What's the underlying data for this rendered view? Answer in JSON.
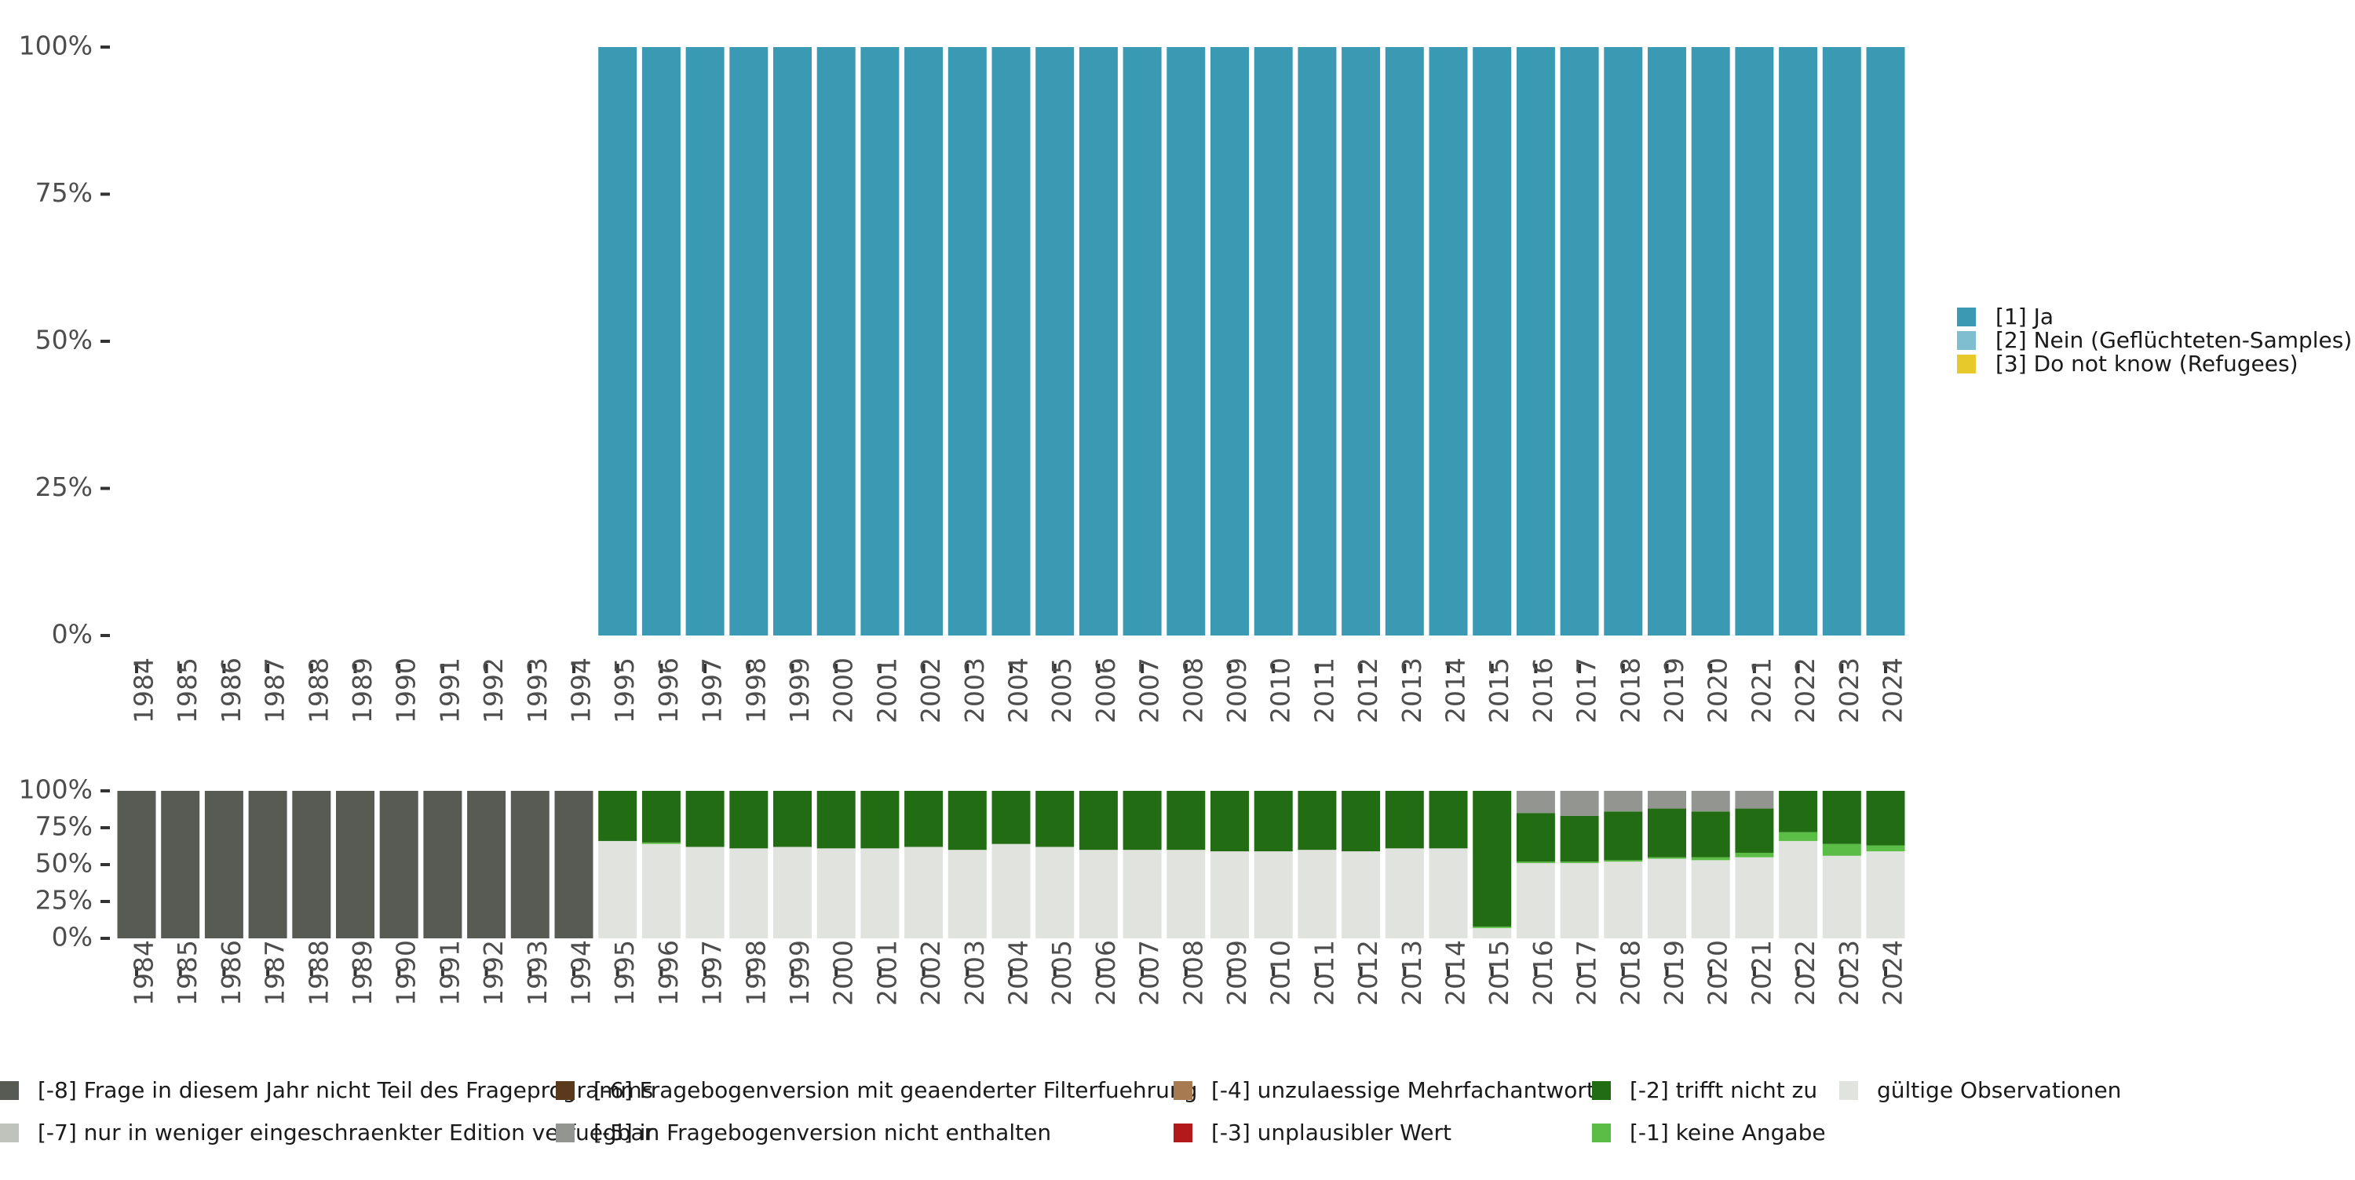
{
  "chart_data": [
    {
      "type": "bar",
      "stacked": true,
      "categories": [
        "1984",
        "1985",
        "1986",
        "1987",
        "1988",
        "1989",
        "1990",
        "1991",
        "1992",
        "1993",
        "1994",
        "1995",
        "1996",
        "1997",
        "1998",
        "1999",
        "2000",
        "2001",
        "2002",
        "2003",
        "2004",
        "2005",
        "2006",
        "2007",
        "2008",
        "2009",
        "2010",
        "2011",
        "2012",
        "2013",
        "2014",
        "2015",
        "2016",
        "2017",
        "2018",
        "2019",
        "2020",
        "2021",
        "2022",
        "2023",
        "2024"
      ],
      "ylim": [
        0,
        1
      ],
      "y_ticks": [
        0,
        0.25,
        0.5,
        0.75,
        1
      ],
      "y_tick_labels": [
        "0%",
        "25%",
        "50%",
        "75%",
        "100%"
      ],
      "grid": false,
      "legend_position": "right",
      "series": [
        {
          "name": "[1] Ja",
          "color": "#3a99b3",
          "values": [
            0,
            0,
            0,
            0,
            0,
            0,
            0,
            0,
            0,
            0,
            0,
            1,
            1,
            1,
            1,
            1,
            1,
            1,
            1,
            1,
            1,
            1,
            1,
            1,
            1,
            1,
            1,
            1,
            1,
            1,
            1,
            1,
            1,
            1,
            1,
            1,
            1,
            1,
            1,
            1,
            1
          ]
        },
        {
          "name": "[2] Nein (Geflüchteten-Samples)",
          "color": "#7fbdd1",
          "values": [
            0,
            0,
            0,
            0,
            0,
            0,
            0,
            0,
            0,
            0,
            0,
            0,
            0,
            0,
            0,
            0,
            0,
            0,
            0,
            0,
            0,
            0,
            0,
            0,
            0,
            0,
            0,
            0,
            0,
            0,
            0,
            0,
            0,
            0,
            0,
            0,
            0,
            0,
            0,
            0,
            0
          ]
        },
        {
          "name": "[3] Do not know (Refugees)",
          "color": "#e8c92b",
          "values": [
            0,
            0,
            0,
            0,
            0,
            0,
            0,
            0,
            0,
            0,
            0,
            0,
            0,
            0,
            0,
            0,
            0,
            0,
            0,
            0,
            0,
            0,
            0,
            0,
            0,
            0,
            0,
            0,
            0,
            0,
            0,
            0,
            0,
            0,
            0,
            0,
            0,
            0,
            0,
            0,
            0
          ]
        }
      ]
    },
    {
      "type": "bar",
      "stacked": true,
      "categories": [
        "1984",
        "1985",
        "1986",
        "1987",
        "1988",
        "1989",
        "1990",
        "1991",
        "1992",
        "1993",
        "1994",
        "1995",
        "1996",
        "1997",
        "1998",
        "1999",
        "2000",
        "2001",
        "2002",
        "2003",
        "2004",
        "2005",
        "2006",
        "2007",
        "2008",
        "2009",
        "2010",
        "2011",
        "2012",
        "2013",
        "2014",
        "2015",
        "2016",
        "2017",
        "2018",
        "2019",
        "2020",
        "2021",
        "2022",
        "2023",
        "2024"
      ],
      "ylim": [
        0,
        1
      ],
      "y_ticks": [
        0,
        0.25,
        0.5,
        0.75,
        1
      ],
      "y_tick_labels": [
        "0%",
        "25%",
        "50%",
        "75%",
        "100%"
      ],
      "grid": false,
      "legend_position": "bottom",
      "series": [
        {
          "name": "gültige Observationen",
          "color": "#e1e3de",
          "values": [
            0,
            0,
            0,
            0,
            0,
            0,
            0,
            0,
            0,
            0,
            0,
            0.66,
            0.64,
            0.62,
            0.61,
            0.62,
            0.61,
            0.61,
            0.62,
            0.6,
            0.64,
            0.62,
            0.6,
            0.6,
            0.6,
            0.59,
            0.59,
            0.6,
            0.59,
            0.61,
            0.61,
            0.07,
            0.51,
            0.51,
            0.52,
            0.54,
            0.53,
            0.55,
            0.66,
            0.56,
            0.59
          ]
        },
        {
          "name": "[-1] keine Angabe",
          "color": "#5bbd45",
          "values": [
            0,
            0,
            0,
            0,
            0,
            0,
            0,
            0,
            0,
            0,
            0,
            0,
            0.01,
            0,
            0,
            0,
            0,
            0,
            0,
            0,
            0,
            0,
            0,
            0,
            0,
            0,
            0,
            0,
            0,
            0,
            0,
            0.01,
            0.01,
            0.01,
            0.01,
            0.01,
            0.02,
            0.03,
            0.06,
            0.08,
            0.04
          ]
        },
        {
          "name": "[-2] trifft nicht zu",
          "color": "#226d13",
          "values": [
            0,
            0,
            0,
            0,
            0,
            0,
            0,
            0,
            0,
            0,
            0,
            0.34,
            0.35,
            0.38,
            0.39,
            0.38,
            0.39,
            0.39,
            0.38,
            0.4,
            0.36,
            0.38,
            0.4,
            0.4,
            0.4,
            0.41,
            0.41,
            0.4,
            0.41,
            0.39,
            0.39,
            0.92,
            0.33,
            0.31,
            0.33,
            0.33,
            0.31,
            0.3,
            0.28,
            0.36,
            0.37
          ]
        },
        {
          "name": "[-3] unplausibler Wert",
          "color": "#b3181a",
          "values": [
            0,
            0,
            0,
            0,
            0,
            0,
            0,
            0,
            0,
            0,
            0,
            0,
            0,
            0,
            0,
            0,
            0,
            0,
            0,
            0,
            0,
            0,
            0,
            0,
            0,
            0,
            0,
            0,
            0,
            0,
            0,
            0,
            0,
            0,
            0,
            0,
            0,
            0,
            0,
            0,
            0
          ]
        },
        {
          "name": "[-4] unzulaessige Mehrfachantwort",
          "color": "#a87a52",
          "values": [
            0,
            0,
            0,
            0,
            0,
            0,
            0,
            0,
            0,
            0,
            0,
            0,
            0,
            0,
            0,
            0,
            0,
            0,
            0,
            0,
            0,
            0,
            0,
            0,
            0,
            0,
            0,
            0,
            0,
            0,
            0,
            0,
            0,
            0,
            0,
            0,
            0,
            0,
            0,
            0,
            0
          ]
        },
        {
          "name": "[-5] in Fragebogenversion nicht enthalten",
          "color": "#939590",
          "values": [
            0,
            0,
            0,
            0,
            0,
            0,
            0,
            0,
            0,
            0,
            0,
            0,
            0,
            0,
            0,
            0,
            0,
            0,
            0,
            0,
            0,
            0,
            0,
            0,
            0,
            0,
            0,
            0,
            0,
            0,
            0,
            0,
            0.15,
            0.17,
            0.14,
            0.12,
            0.14,
            0.12,
            0,
            0,
            0
          ]
        },
        {
          "name": "[-6] Fragebogenversion mit geaenderter Filterfuehrung",
          "color": "#5b3a1c",
          "values": [
            0,
            0,
            0,
            0,
            0,
            0,
            0,
            0,
            0,
            0,
            0,
            0,
            0,
            0,
            0,
            0,
            0,
            0,
            0,
            0,
            0,
            0,
            0,
            0,
            0,
            0,
            0,
            0,
            0,
            0,
            0,
            0,
            0,
            0,
            0,
            0,
            0,
            0,
            0,
            0,
            0
          ]
        },
        {
          "name": "[-7] nur in weniger eingeschraenkter Edition verfuegbar",
          "color": "#c0c2bc",
          "values": [
            0,
            0,
            0,
            0,
            0,
            0,
            0,
            0,
            0,
            0,
            0,
            0,
            0,
            0,
            0,
            0,
            0,
            0,
            0,
            0,
            0,
            0,
            0,
            0,
            0,
            0,
            0,
            0,
            0,
            0,
            0,
            0,
            0,
            0,
            0,
            0,
            0,
            0,
            0,
            0,
            0
          ]
        },
        {
          "name": "[-8] Frage in diesem Jahr nicht Teil des Frageprogramms",
          "color": "#575b54",
          "values": [
            1,
            1,
            1,
            1,
            1,
            1,
            1,
            1,
            1,
            1,
            1,
            0,
            0,
            0,
            0,
            0,
            0,
            0,
            0,
            0,
            0,
            0,
            0,
            0,
            0,
            0,
            0,
            0,
            0,
            0,
            0,
            0,
            0,
            0,
            0,
            0,
            0,
            0,
            0,
            0,
            0
          ]
        }
      ],
      "legend_order": [
        "[-8] Frage in diesem Jahr nicht Teil des Frageprogramms",
        "[-7] nur in weniger eingeschraenkter Edition verfuegbar",
        "[-6] Fragebogenversion mit geaenderter Filterfuehrung",
        "[-5] in Fragebogenversion nicht enthalten",
        "[-4] unzulaessige Mehrfachantwort",
        "[-3] unplausibler Wert",
        "[-2] trifft nicht zu",
        "[-1] keine Angabe",
        "gültige Observationen"
      ]
    }
  ]
}
